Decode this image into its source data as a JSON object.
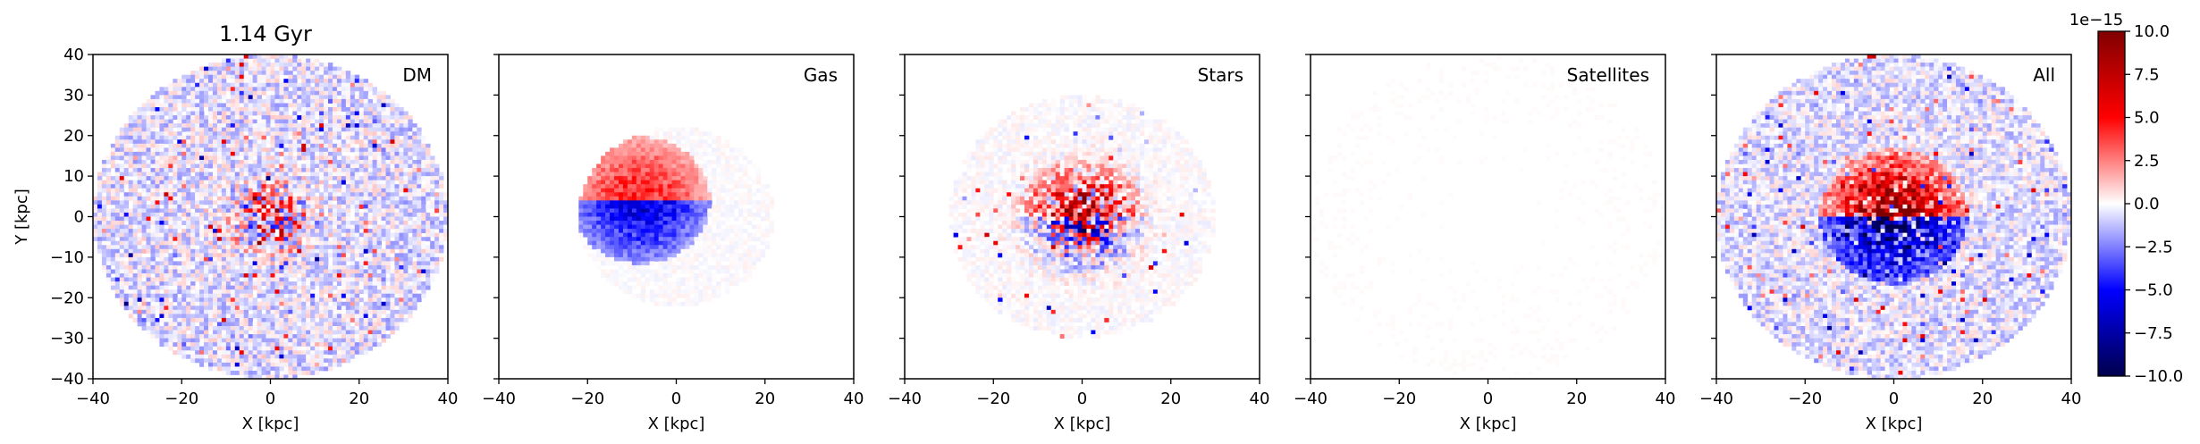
{
  "figure_title": "1.14 Gyr",
  "colorbar": {
    "colormap": "seismic",
    "min": -10.0,
    "max": 10.0,
    "ticks": [
      "10.0",
      "7.5",
      "5.0",
      "2.5",
      "0.0",
      "−2.5",
      "−5.0",
      "−7.5",
      "−10.0"
    ],
    "offset_label": "1e−15"
  },
  "chart_data": [
    {
      "type": "heatmap",
      "panel_label": "DM",
      "xlabel": "X [kpc]",
      "ylabel": "Y [kpc]",
      "xlim": [
        -40,
        40
      ],
      "ylim": [
        -40,
        40
      ],
      "xticks": [
        "−40",
        "−20",
        "0",
        "20",
        "40"
      ],
      "yticks": [
        "40",
        "30",
        "20",
        "10",
        "0",
        "−10",
        "−20",
        "−30",
        "−40"
      ],
      "field": {
        "disk_radius": 40,
        "background": -0.6,
        "noise": 1.6,
        "core_radius": 8,
        "core_amplitude": 7.5,
        "dipole_amplitude": 0,
        "speckle_fraction": 0.04
      }
    },
    {
      "type": "heatmap",
      "panel_label": "Gas",
      "xlabel": "X [kpc]",
      "ylabel": "",
      "xlim": [
        -40,
        40
      ],
      "ylim": [
        -40,
        40
      ],
      "xticks": [
        "−40",
        "−20",
        "0",
        "20",
        "40"
      ],
      "yticks": [],
      "field": {
        "disk_radius": 22,
        "background": 0.0,
        "noise": 0.3,
        "core_radius": 0,
        "core_amplitude": 0,
        "dipole_amplitude": 4.5,
        "dipole_center": [
          -8,
          4
        ],
        "dipole_radius": 13,
        "speckle_fraction": 0.0
      }
    },
    {
      "type": "heatmap",
      "panel_label": "Stars",
      "xlabel": "X [kpc]",
      "ylabel": "",
      "xlim": [
        -40,
        40
      ],
      "ylim": [
        -40,
        40
      ],
      "xticks": [
        "−40",
        "−20",
        "0",
        "20",
        "40"
      ],
      "yticks": [],
      "field": {
        "disk_radius": 30,
        "background": 0.0,
        "noise": 0.4,
        "core_radius": 10,
        "core_amplitude": 9.0,
        "dipole_amplitude": 2.0,
        "dipole_center": [
          0,
          0
        ],
        "dipole_radius": 12,
        "speckle_fraction": 0.02
      }
    },
    {
      "type": "heatmap",
      "panel_label": "Satellites",
      "xlabel": "X [kpc]",
      "ylabel": "",
      "xlim": [
        -40,
        40
      ],
      "ylim": [
        -40,
        40
      ],
      "xticks": [
        "−40",
        "−20",
        "0",
        "20",
        "40"
      ],
      "yticks": [],
      "field": {
        "disk_radius": 40,
        "background": 0.05,
        "noise": 0.05,
        "core_radius": 0,
        "core_amplitude": 0,
        "dipole_amplitude": 0,
        "speckle_fraction": 0.0
      }
    },
    {
      "type": "heatmap",
      "panel_label": "All",
      "xlabel": "X [kpc]",
      "ylabel": "",
      "xlim": [
        -40,
        40
      ],
      "ylim": [
        -40,
        40
      ],
      "xticks": [
        "−40",
        "−20",
        "0",
        "20",
        "40"
      ],
      "yticks": [],
      "field": {
        "disk_radius": 40,
        "background": -0.6,
        "noise": 1.4,
        "core_radius": 10,
        "core_amplitude": 8.0,
        "dipole_amplitude": 6.0,
        "dipole_center": [
          0,
          0
        ],
        "dipole_radius": 14,
        "speckle_fraction": 0.04
      }
    }
  ]
}
